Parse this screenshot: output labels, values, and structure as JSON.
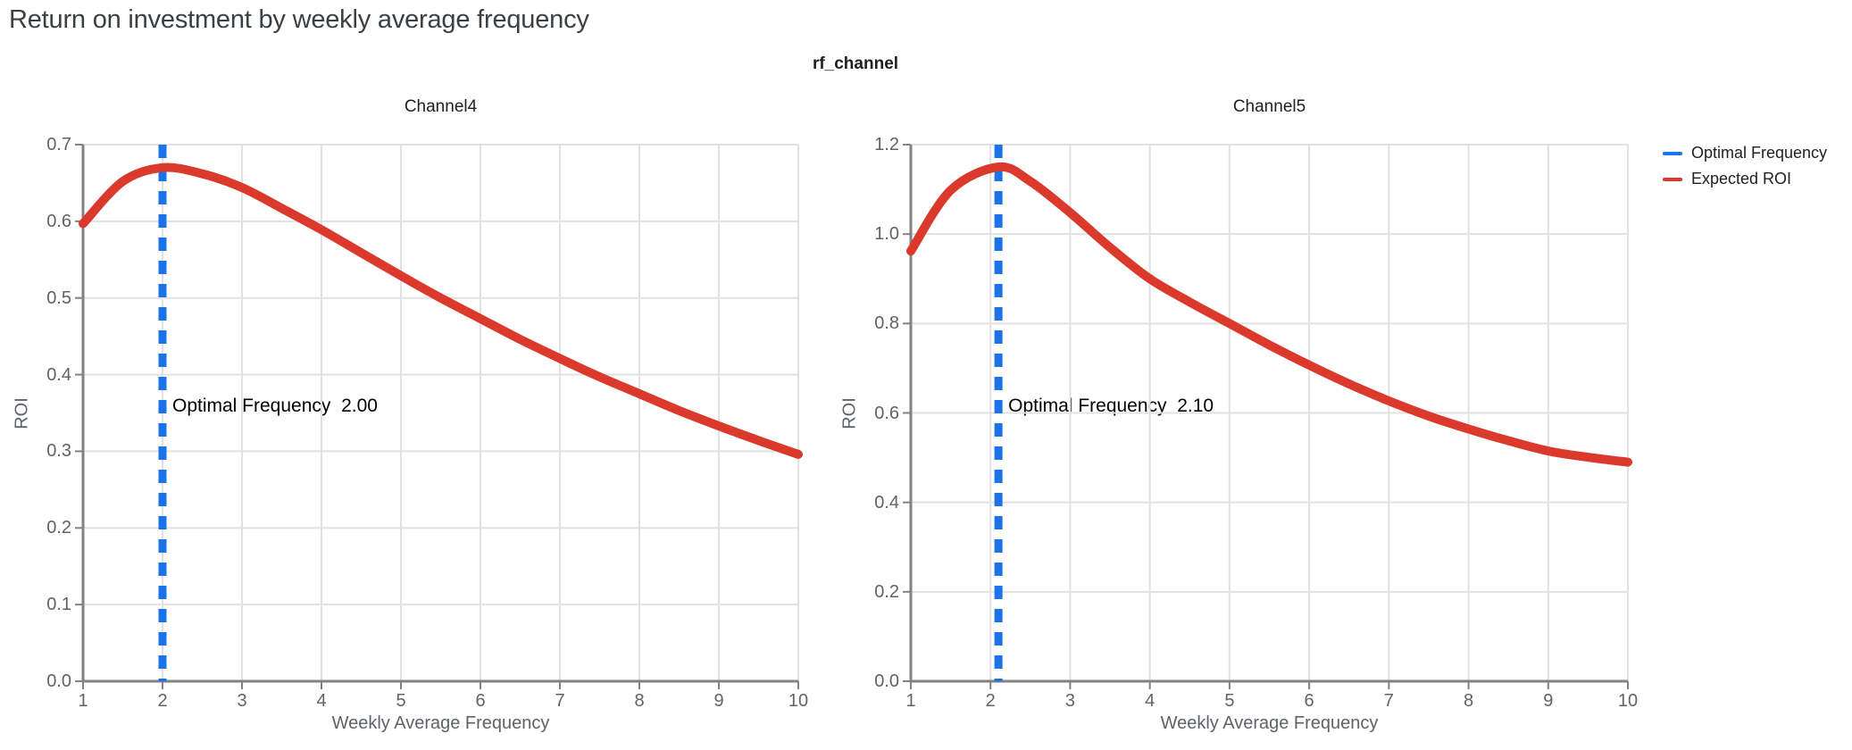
{
  "page": {
    "title": "Return on investment by weekly average frequency"
  },
  "figure": {
    "title": "rf_channel"
  },
  "legend": {
    "items": [
      {
        "label": "Optimal Frequency",
        "color": "#1a73e8"
      },
      {
        "label": "Expected ROI",
        "color": "#da392c"
      }
    ]
  },
  "colors": {
    "optimal_frequency_blue": "#1a73e8",
    "expected_roi_red": "#da392c",
    "axis_line_gray": "#828282",
    "grid_gray": "#e1e1e1",
    "tick_label_gray": "#5f6368",
    "title_gray": "#3c4043"
  },
  "chart_data": [
    {
      "type": "line",
      "title": "Channel4",
      "xlabel": "Weekly Average Frequency",
      "ylabel": "ROI",
      "xlim": [
        1,
        10
      ],
      "ylim": [
        0,
        0.7
      ],
      "x_ticks": [
        "1",
        "2",
        "3",
        "4",
        "5",
        "6",
        "7",
        "8",
        "9",
        "10"
      ],
      "y_ticks": [
        "0.0",
        "0.1",
        "0.2",
        "0.3",
        "0.4",
        "0.5",
        "0.6",
        "0.7"
      ],
      "grid": true,
      "optimal_frequency": 2.0,
      "annotation": "Optimal Frequency  2.00",
      "series": [
        {
          "name": "Expected ROI",
          "x": [
            1,
            1.5,
            2,
            2.5,
            3,
            3.5,
            4,
            4.5,
            5,
            5.5,
            6,
            6.5,
            7,
            7.5,
            8,
            8.5,
            9,
            9.5,
            10
          ],
          "y": [
            0.597,
            0.652,
            0.67,
            0.662,
            0.644,
            0.617,
            0.589,
            0.559,
            0.529,
            0.5,
            0.473,
            0.446,
            0.421,
            0.397,
            0.375,
            0.353,
            0.333,
            0.314,
            0.296
          ]
        },
        {
          "name": "Optimal Frequency",
          "x": [
            2.0,
            2.0
          ],
          "y": [
            0,
            0.7
          ]
        }
      ]
    },
    {
      "type": "line",
      "title": "Channel5",
      "xlabel": "Weekly Average Frequency",
      "ylabel": "ROI",
      "xlim": [
        1,
        10
      ],
      "ylim": [
        0,
        1.2
      ],
      "x_ticks": [
        "1",
        "2",
        "3",
        "4",
        "5",
        "6",
        "7",
        "8",
        "9",
        "10"
      ],
      "y_ticks": [
        "0.0",
        "0.2",
        "0.4",
        "0.6",
        "0.8",
        "1.0",
        "1.2"
      ],
      "grid": true,
      "optimal_frequency": 2.1,
      "annotation": "Optimal Frequency  2.10",
      "series": [
        {
          "name": "Expected ROI",
          "x": [
            1,
            1.5,
            2.1,
            2.5,
            3,
            3.5,
            4,
            4.5,
            5,
            5.5,
            6,
            6.5,
            7,
            7.5,
            8,
            8.5,
            9,
            9.5,
            10
          ],
          "y": [
            0.962,
            1.098,
            1.15,
            1.118,
            1.048,
            0.97,
            0.9,
            0.848,
            0.8,
            0.752,
            0.707,
            0.665,
            0.627,
            0.593,
            0.564,
            0.538,
            0.515,
            0.501,
            0.49
          ]
        },
        {
          "name": "Optimal Frequency",
          "x": [
            2.1,
            2.1
          ],
          "y": [
            0,
            1.2
          ]
        }
      ]
    }
  ]
}
